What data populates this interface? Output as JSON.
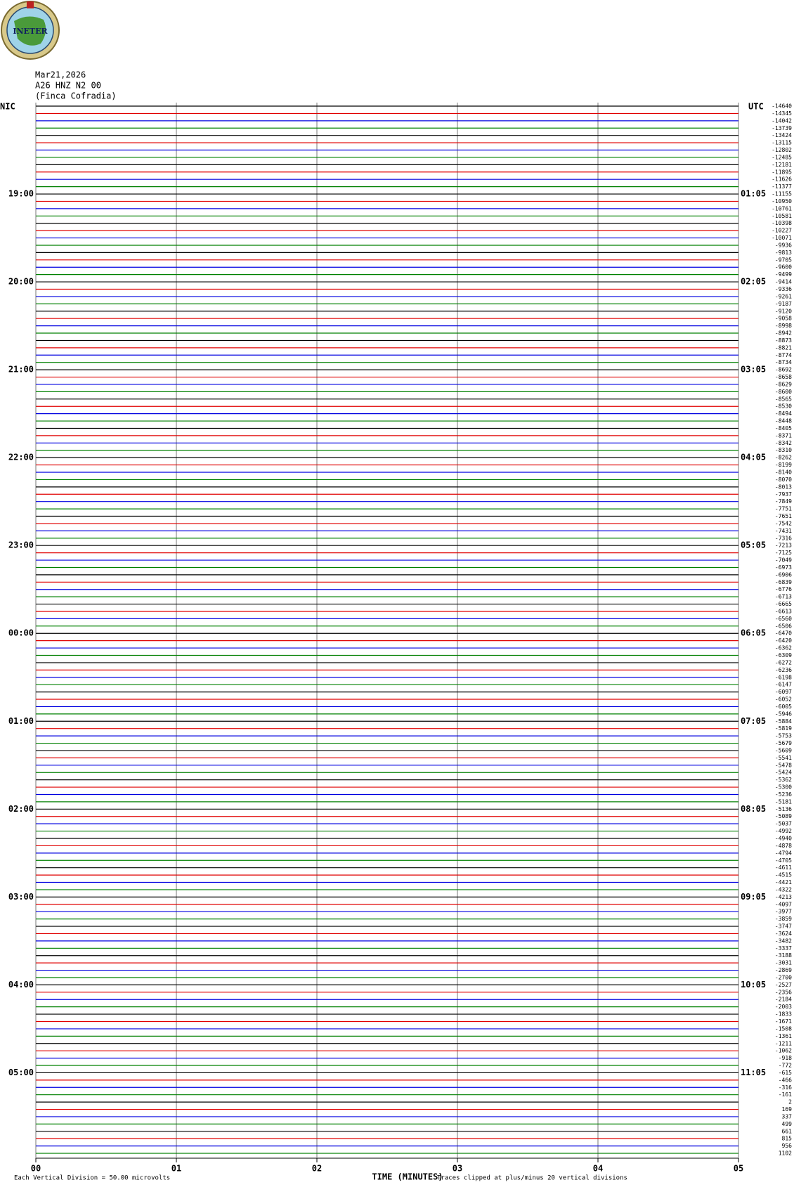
{
  "logo": "INETER",
  "chart_data": {
    "type": "helicorder",
    "header": [
      "Mar21,2026",
      "A26 HNZ N2 00",
      "(Finca Cofradia)"
    ],
    "left_axis_label": "NIC",
    "right_axis_label": "UTC",
    "colors": [
      "#000000",
      "#e00000",
      "#0000e0",
      "#008000"
    ],
    "left_times": [
      null,
      null,
      null,
      null,
      null,
      null,
      null,
      null,
      null,
      null,
      null,
      null,
      "19:00",
      null,
      null,
      null,
      null,
      null,
      null,
      null,
      null,
      null,
      null,
      null,
      "20:00",
      null,
      null,
      null,
      null,
      null,
      null,
      null,
      null,
      null,
      null,
      null,
      "21:00",
      null,
      null,
      null,
      null,
      null,
      null,
      null,
      null,
      null,
      null,
      null,
      "22:00",
      null,
      null,
      null,
      null,
      null,
      null,
      null,
      null,
      null,
      null,
      null,
      "23:00",
      null,
      null,
      null,
      null,
      null,
      null,
      null,
      null,
      null,
      null,
      null,
      "00:00",
      null,
      null,
      null,
      null,
      null,
      null,
      null,
      null,
      null,
      null,
      null,
      "01:00",
      null,
      null,
      null,
      null,
      null,
      null,
      null,
      null,
      null,
      null,
      null,
      "02:00",
      null,
      null,
      null,
      null,
      null,
      null,
      null,
      null,
      null,
      null,
      null,
      "03:00",
      null,
      null,
      null,
      null,
      null,
      null,
      null,
      null,
      null,
      null,
      null,
      "04:00",
      null,
      null,
      null,
      null,
      null,
      null,
      null,
      null,
      null,
      null,
      null,
      "05:00",
      null,
      null,
      null,
      null,
      null,
      null,
      null,
      null,
      null,
      null,
      null
    ],
    "right_times": [
      null,
      null,
      null,
      null,
      null,
      null,
      null,
      null,
      null,
      null,
      null,
      null,
      "01:05",
      null,
      null,
      null,
      null,
      null,
      null,
      null,
      null,
      null,
      null,
      null,
      "02:05",
      null,
      null,
      null,
      null,
      null,
      null,
      null,
      null,
      null,
      null,
      null,
      "03:05",
      null,
      null,
      null,
      null,
      null,
      null,
      null,
      null,
      null,
      null,
      null,
      "04:05",
      null,
      null,
      null,
      null,
      null,
      null,
      null,
      null,
      null,
      null,
      null,
      "05:05",
      null,
      null,
      null,
      null,
      null,
      null,
      null,
      null,
      null,
      null,
      null,
      "06:05",
      null,
      null,
      null,
      null,
      null,
      null,
      null,
      null,
      null,
      null,
      null,
      "07:05",
      null,
      null,
      null,
      null,
      null,
      null,
      null,
      null,
      null,
      null,
      null,
      "08:05",
      null,
      null,
      null,
      null,
      null,
      null,
      null,
      null,
      null,
      null,
      null,
      "09:05",
      null,
      null,
      null,
      null,
      null,
      null,
      null,
      null,
      null,
      null,
      null,
      "10:05",
      null,
      null,
      null,
      null,
      null,
      null,
      null,
      null,
      null,
      null,
      null,
      "11:05",
      null,
      null,
      null,
      null,
      null,
      null,
      null,
      null,
      null,
      null,
      null
    ],
    "trace_values": [
      -14640,
      -14345,
      -14042,
      -13739,
      -13424,
      -13115,
      -12802,
      -12485,
      -12181,
      -11895,
      -11626,
      -11377,
      -11155,
      -10950,
      -10761,
      -10581,
      -10398,
      -10227,
      -10071,
      -9936,
      -9813,
      -9705,
      -9600,
      -9499,
      -9414,
      -9336,
      -9261,
      -9187,
      -9120,
      -9058,
      -8998,
      -8942,
      -8873,
      -8821,
      -8774,
      -8734,
      -8692,
      -8658,
      -8629,
      -8600,
      -8565,
      -8530,
      -8494,
      -8448,
      -8405,
      -8371,
      -8342,
      -8310,
      -8262,
      -8199,
      -8140,
      -8070,
      -8013,
      -7937,
      -7849,
      -7751,
      -7651,
      -7542,
      -7431,
      -7316,
      -7213,
      -7125,
      -7049,
      -6973,
      -6906,
      -6839,
      -6776,
      -6713,
      -6665,
      -6613,
      -6560,
      -6506,
      -6470,
      -6420,
      -6362,
      -6309,
      -6272,
      -6236,
      -6198,
      -6147,
      -6097,
      -6052,
      -6005,
      -5946,
      -5884,
      -5819,
      -5753,
      -5679,
      -5609,
      -5541,
      -5478,
      -5424,
      -5362,
      -5300,
      -5236,
      -5181,
      -5136,
      -5089,
      -5037,
      -4992,
      -4940,
      -4878,
      -4794,
      -4705,
      -4611,
      -4515,
      -4421,
      -4322,
      -4213,
      -4097,
      -3977,
      -3859,
      -3747,
      -3624,
      -3482,
      -3337,
      -3188,
      -3031,
      -2869,
      -2700,
      -2527,
      -2356,
      -2184,
      -2003,
      -1833,
      -1671,
      -1508,
      -1361,
      -1211,
      -1062,
      -918,
      -772,
      -615,
      -466,
      -316,
      -161,
      2,
      169,
      337,
      499,
      661,
      815,
      956,
      1102
    ],
    "xlim": [
      0,
      5
    ],
    "xticks": [
      {
        "value": 0,
        "label": "00"
      },
      {
        "value": 1,
        "label": "01"
      },
      {
        "value": 2,
        "label": "02"
      },
      {
        "value": 3,
        "label": "03"
      },
      {
        "value": 4,
        "label": "04"
      },
      {
        "value": 5,
        "label": "05"
      }
    ],
    "xlabel": "TIME (MINUTES)",
    "scale_note": "Each Vertical Division =   50.00 microvolts",
    "clip_note": "Traces clipped at plus/minus 20 vertical divisions"
  }
}
